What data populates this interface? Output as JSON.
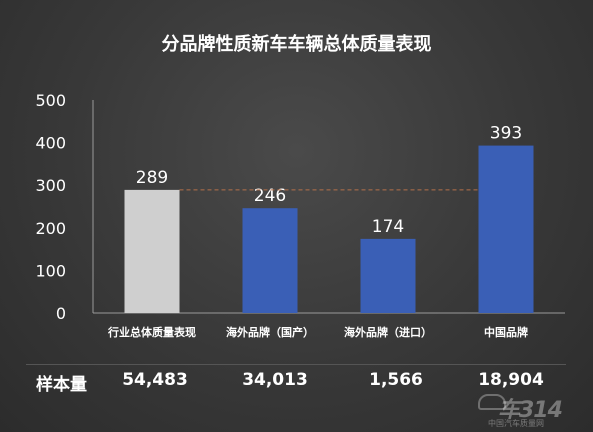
{
  "chart_data": {
    "type": "bar",
    "title": "分品牌性质新车车辆总体质量表现",
    "categories": [
      "行业总体质量表现",
      "海外品牌（国产）",
      "海外品牌（进口）",
      "中国品牌"
    ],
    "values": [
      289,
      246,
      174,
      393
    ],
    "ylim": [
      0,
      500
    ],
    "yticks": [
      0,
      100,
      200,
      300,
      400,
      500
    ],
    "grid": false,
    "reference_line": 289,
    "colors": {
      "baseline_bar": "#cfcfcf",
      "bar": "#3a5fb6",
      "reference_line": "#b5704a",
      "axis": "#9a9a9a"
    }
  },
  "sample": {
    "label": "样本量",
    "values": [
      "54,483",
      "34,013",
      "1,566",
      "18,904"
    ]
  },
  "watermark": {
    "text": "车314",
    "subtext": "中国汽车质量网"
  }
}
